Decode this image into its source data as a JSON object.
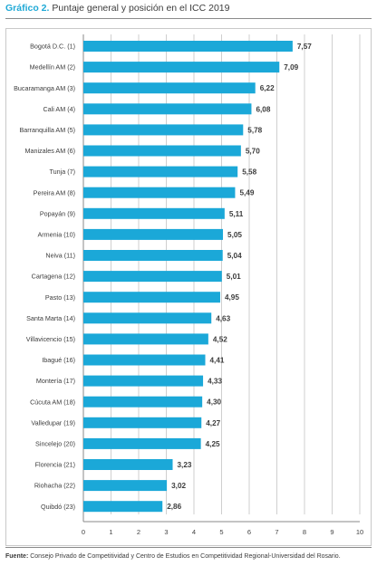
{
  "header": {
    "title_prefix": "Gráfico 2.",
    "title_text": "Puntaje general y posición en el ICC 2019"
  },
  "chart_data": {
    "type": "bar",
    "orientation": "horizontal",
    "title": "Gráfico 2. Puntaje general y posición en el ICC 2019",
    "categories": [
      "Bogotá D.C. (1)",
      "Medellín AM (2)",
      "Bucaramanga AM (3)",
      "Cali AM (4)",
      "Barranquilla AM (5)",
      "Manizales AM (6)",
      "Tunja (7)",
      "Pereira AM (8)",
      "Popayán (9)",
      "Armenia (10)",
      "Neiva (11)",
      "Cartagena (12)",
      "Pasto (13)",
      "Santa Marta (14)",
      "Villavicencio (15)",
      "Ibagué (16)",
      "Montería (17)",
      "Cúcuta AM (18)",
      "Valledupar (19)",
      "Sincelejo (20)",
      "Florencia (21)",
      "Riohacha (22)",
      "Quibdó (23)"
    ],
    "values": [
      7.57,
      7.09,
      6.22,
      6.08,
      5.78,
      5.7,
      5.58,
      5.49,
      5.11,
      5.05,
      5.04,
      5.01,
      4.95,
      4.63,
      4.52,
      4.41,
      4.33,
      4.3,
      4.27,
      4.25,
      3.23,
      3.02,
      2.86
    ],
    "value_labels": [
      "7,57",
      "7,09",
      "6,22",
      "6,08",
      "5,78",
      "5,70",
      "5,58",
      "5,49",
      "5,11",
      "5,05",
      "5,04",
      "5,01",
      "4,95",
      "4,63",
      "4,52",
      "4,41",
      "4,33",
      "4,30",
      "4,27",
      "4,25",
      "3,23",
      "3,02",
      "2,86"
    ],
    "xlim": [
      0,
      10
    ],
    "xticks": [
      0,
      1,
      2,
      3,
      4,
      5,
      6,
      7,
      8,
      9,
      10
    ],
    "grid": "vertical",
    "bar_color": "#1ba8d8"
  },
  "footer": {
    "source_label": "Fuente:",
    "source_text": "Consejo Privado de Competitividad y Centro de Estudios en Competitividad Regional-Universidad del Rosario."
  }
}
